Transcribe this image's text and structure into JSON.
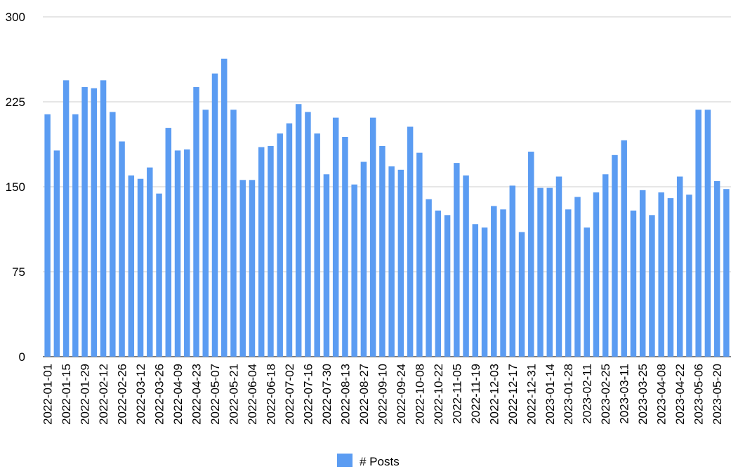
{
  "chart_data": {
    "type": "bar",
    "title": "",
    "xlabel": "",
    "ylabel": "",
    "ylim": [
      0,
      300
    ],
    "yticks": [
      "0",
      "75",
      "150",
      "225",
      "300"
    ],
    "grid": true,
    "legend_position": "bottom",
    "bar_color": "#5b9cf2",
    "series": [
      {
        "name": "# Posts"
      }
    ],
    "x_tick_labels": [
      "2022-01-01",
      "2022-01-15",
      "2022-01-29",
      "2022-02-12",
      "2022-02-26",
      "2022-03-12",
      "2022-03-26",
      "2022-04-09",
      "2022-04-23",
      "2022-05-07",
      "2022-05-21",
      "2022-06-04",
      "2022-06-18",
      "2022-07-02",
      "2022-07-16",
      "2022-07-30",
      "2022-08-13",
      "2022-08-27",
      "2022-09-10",
      "2022-09-24",
      "2022-10-08",
      "2022-10-22",
      "2022-11-05",
      "2022-11-19",
      "2022-12-03",
      "2022-12-17",
      "2022-12-31",
      "2023-01-14",
      "2023-01-28",
      "2023-02-11",
      "2023-02-25",
      "2023-03-11",
      "2023-03-25",
      "2023-04-08",
      "2023-04-22",
      "2023-05-06",
      "2023-05-20"
    ],
    "values": [
      214,
      182,
      244,
      214,
      238,
      237,
      244,
      216,
      190,
      160,
      157,
      167,
      144,
      202,
      182,
      183,
      238,
      218,
      250,
      263,
      218,
      156,
      156,
      185,
      186,
      197,
      206,
      223,
      216,
      197,
      161,
      211,
      194,
      152,
      172,
      211,
      186,
      168,
      165,
      203,
      180,
      139,
      129,
      125,
      171,
      160,
      117,
      114,
      133,
      130,
      151,
      110,
      181,
      149,
      149,
      159,
      130,
      141,
      114,
      145,
      161,
      178,
      191,
      129,
      147,
      125,
      145,
      140,
      159,
      143,
      218,
      218,
      155,
      148
    ]
  },
  "legend": {
    "label": "# Posts"
  }
}
